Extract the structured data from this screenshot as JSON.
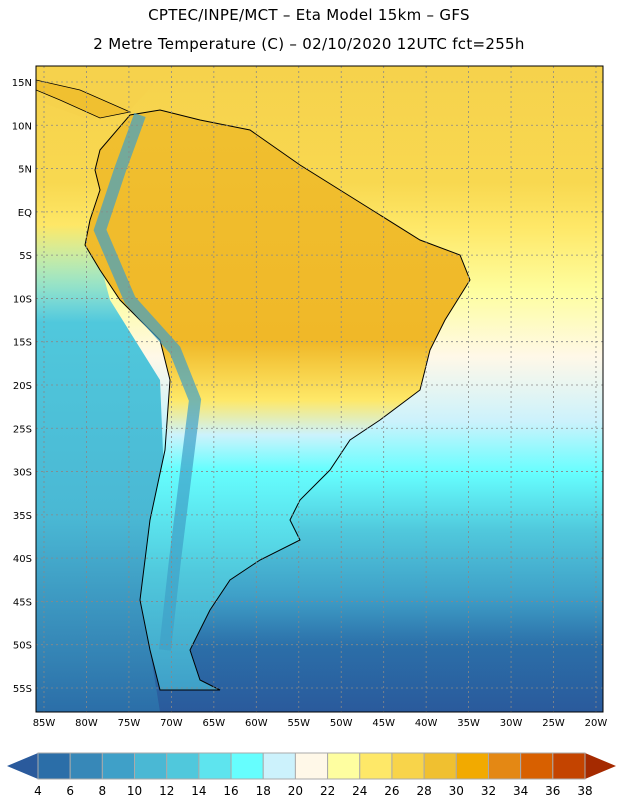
{
  "header": {
    "line1": "CPTEC/INPE/MCT –  Eta Model 15km – GFS",
    "line2": "2 Metre Temperature (C) – 02/10/2020 12UTC fct=255h"
  },
  "map": {
    "lat_labels": [
      {
        "v": 15,
        "t": "15N"
      },
      {
        "v": 10,
        "t": "10N"
      },
      {
        "v": 5,
        "t": "5N"
      },
      {
        "v": 0,
        "t": "EQ"
      },
      {
        "v": -5,
        "t": "5S"
      },
      {
        "v": -10,
        "t": "10S"
      },
      {
        "v": -15,
        "t": "15S"
      },
      {
        "v": -20,
        "t": "20S"
      },
      {
        "v": -25,
        "t": "25S"
      },
      {
        "v": -30,
        "t": "30S"
      },
      {
        "v": -35,
        "t": "35S"
      },
      {
        "v": -40,
        "t": "40S"
      },
      {
        "v": -45,
        "t": "45S"
      },
      {
        "v": -50,
        "t": "50S"
      },
      {
        "v": -55,
        "t": "55S"
      }
    ],
    "lon_labels": [
      {
        "v": -85,
        "t": "85W"
      },
      {
        "v": -80,
        "t": "80W"
      },
      {
        "v": -75,
        "t": "75W"
      },
      {
        "v": -70,
        "t": "70W"
      },
      {
        "v": -65,
        "t": "65W"
      },
      {
        "v": -60,
        "t": "60W"
      },
      {
        "v": -55,
        "t": "55W"
      },
      {
        "v": -50,
        "t": "50W"
      },
      {
        "v": -45,
        "t": "45W"
      },
      {
        "v": -40,
        "t": "40W"
      },
      {
        "v": -35,
        "t": "35W"
      },
      {
        "v": -30,
        "t": "30W"
      },
      {
        "v": -25,
        "t": "25W"
      },
      {
        "v": -20,
        "t": "20W"
      }
    ]
  },
  "colorbar": {
    "labels": [
      "4",
      "6",
      "8",
      "10",
      "12",
      "14",
      "16",
      "18",
      "20",
      "22",
      "24",
      "26",
      "28",
      "30",
      "32",
      "34",
      "36",
      "38"
    ],
    "below_color": "#2a5a9c",
    "above_color": "#a52a00",
    "colors": [
      "#2b6ea8",
      "#3788b8",
      "#3fa0c8",
      "#4ab8d4",
      "#50c8dc",
      "#5ee4ee",
      "#66fefe",
      "#ccf2fc",
      "#fff8e8",
      "#fefea0",
      "#fee868",
      "#f8d44a",
      "#f0c030",
      "#f2aa00",
      "#e48814",
      "#d86000",
      "#c44400"
    ]
  }
}
